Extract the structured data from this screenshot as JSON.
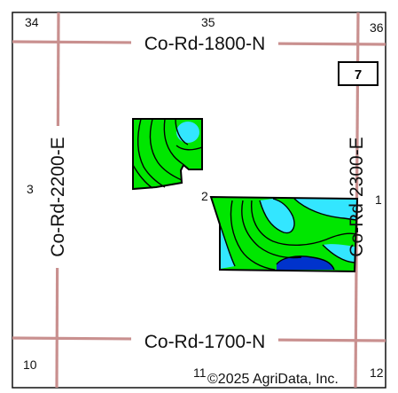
{
  "roads": {
    "north": "Co-Rd-1800-N",
    "south": "Co-Rd-1700-N",
    "west": "Co-Rd-2200-E",
    "east": "Co-Rd-2300-E"
  },
  "sections": {
    "nw": "34",
    "n": "35",
    "ne": "36",
    "w": "3",
    "e": "1",
    "sw": "10",
    "s": "11",
    "se": "12"
  },
  "township_badge": "7",
  "field_labels": {
    "south_field": "2"
  },
  "copyright": "©2025 AgriData, Inc.",
  "colors": {
    "road": "#c9908f",
    "green": "#00e600",
    "cyan": "#33e6ff",
    "blue": "#0033cc",
    "outline": "#000000"
  }
}
